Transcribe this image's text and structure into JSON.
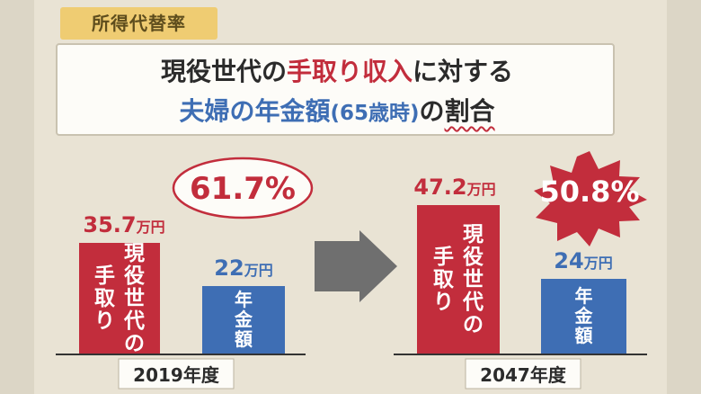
{
  "topic_label": "所得代替率",
  "title": {
    "line1_part1": "現役世代の",
    "line1_highlight": "手取り収入",
    "line1_part3": "に対する",
    "line2_main": "夫婦の年金額",
    "line2_paren": "(65歳時)",
    "line2_no": "の",
    "line2_emphasis": "割合"
  },
  "chart_data": {
    "type": "bar",
    "unit": "万円",
    "categories": [
      "2019年度",
      "2047年度"
    ],
    "bar_labels": {
      "takehome": "現役世代の手取り",
      "pension": "年金額"
    },
    "groups": [
      {
        "year": "2019年度",
        "takehome": 35.7,
        "takehome_number": "35.7",
        "pension": 22,
        "pension_number": "22",
        "ratio": 61.7,
        "ratio_label": "61.7%"
      },
      {
        "year": "2047年度",
        "takehome": 47.2,
        "takehome_number": "47.2",
        "pension": 24,
        "pension_number": "24",
        "ratio": 50.8,
        "ratio_label": "50.8%"
      }
    ],
    "colors": {
      "takehome": "#c22d3c",
      "pension": "#3e6eb4",
      "highlight_tag": "#efcc72"
    }
  }
}
